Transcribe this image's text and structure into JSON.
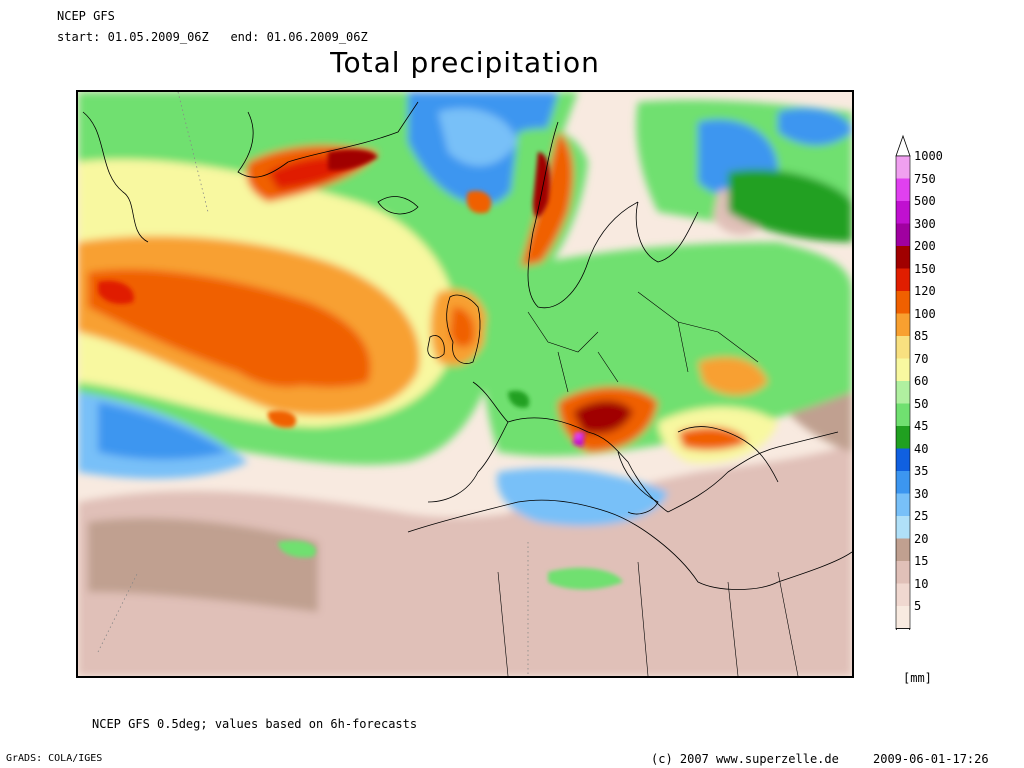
{
  "header": {
    "model": "NCEP GFS",
    "start_label": "start:",
    "start_value": "01.05.2009_06Z",
    "end_label": "end:",
    "end_value": "01.06.2009_06Z"
  },
  "title": "Total precipitation",
  "legend": {
    "unit": "[mm]",
    "levels": [
      {
        "label": "1000",
        "color": "#f0a0f0"
      },
      {
        "label": "750",
        "color": "#e040f0"
      },
      {
        "label": "500",
        "color": "#c010d0"
      },
      {
        "label": "300",
        "color": "#a000a0"
      },
      {
        "label": "200",
        "color": "#a00000"
      },
      {
        "label": "150",
        "color": "#e01e00"
      },
      {
        "label": "120",
        "color": "#f06000"
      },
      {
        "label": "100",
        "color": "#f8a030"
      },
      {
        "label": "85",
        "color": "#f8e080"
      },
      {
        "label": "70",
        "color": "#f8f8a0"
      },
      {
        "label": "60",
        "color": "#b0f0a0"
      },
      {
        "label": "50",
        "color": "#70e070"
      },
      {
        "label": "45",
        "color": "#20a020"
      },
      {
        "label": "40",
        "color": "#1060e0"
      },
      {
        "label": "35",
        "color": "#3c96f0"
      },
      {
        "label": "30",
        "color": "#78c0f8"
      },
      {
        "label": "25",
        "color": "#b0e0f8"
      },
      {
        "label": "20",
        "color": "#c0a090"
      },
      {
        "label": "15",
        "color": "#e0c0b8"
      },
      {
        "label": "10",
        "color": "#f0d8d0"
      },
      {
        "label": "5",
        "color": "#f8eae0"
      }
    ]
  },
  "footnote": "NCEP GFS 0.5deg; values based on 6h-forecasts",
  "credits": {
    "grads": "GrADS: COLA/IGES",
    "copyright": "(c) 2007 www.superzelle.de",
    "timestamp": "2009-06-01-17:26"
  }
}
